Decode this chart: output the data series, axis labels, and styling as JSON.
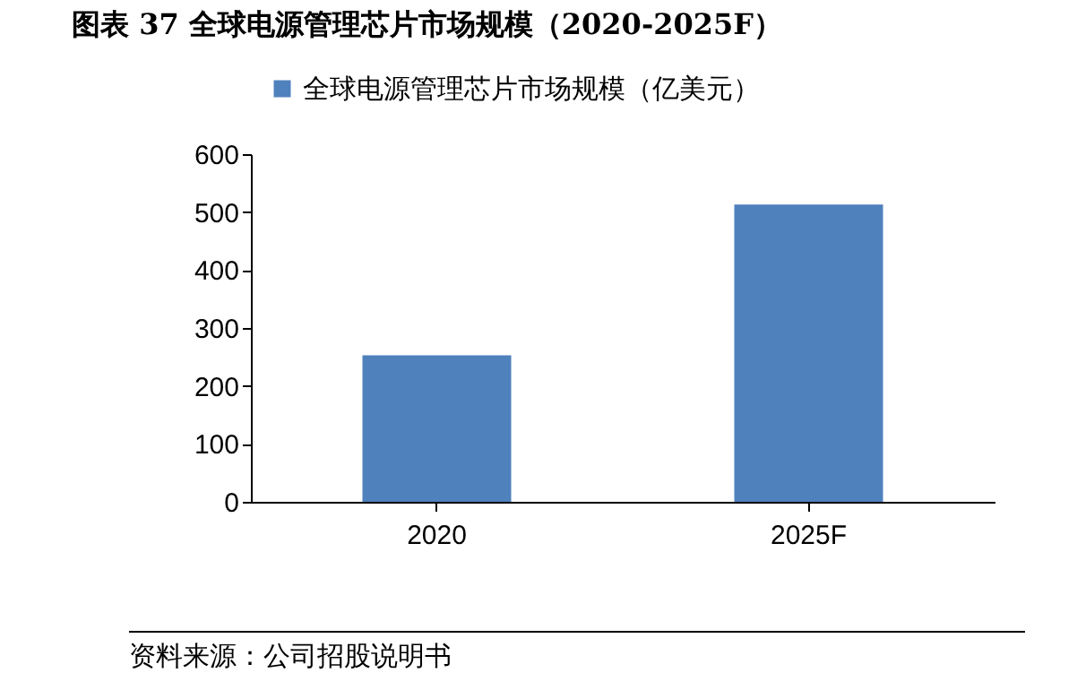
{
  "chart_data": {
    "type": "bar",
    "title": "图表 37  全球电源管理芯片市场规模（2020-2025F）",
    "categories": [
      "2020",
      "2025F"
    ],
    "series": [
      {
        "name": "全球电源管理芯片市场规模（亿美元）",
        "color": "#4f81bd",
        "values": [
          253,
          513
        ]
      }
    ],
    "ylim": [
      0,
      600
    ],
    "yticks": [
      0,
      100,
      200,
      300,
      400,
      500,
      600
    ],
    "grid": false,
    "legend": "top",
    "annotations": [
      "资料来源：公司招股说明书"
    ]
  }
}
